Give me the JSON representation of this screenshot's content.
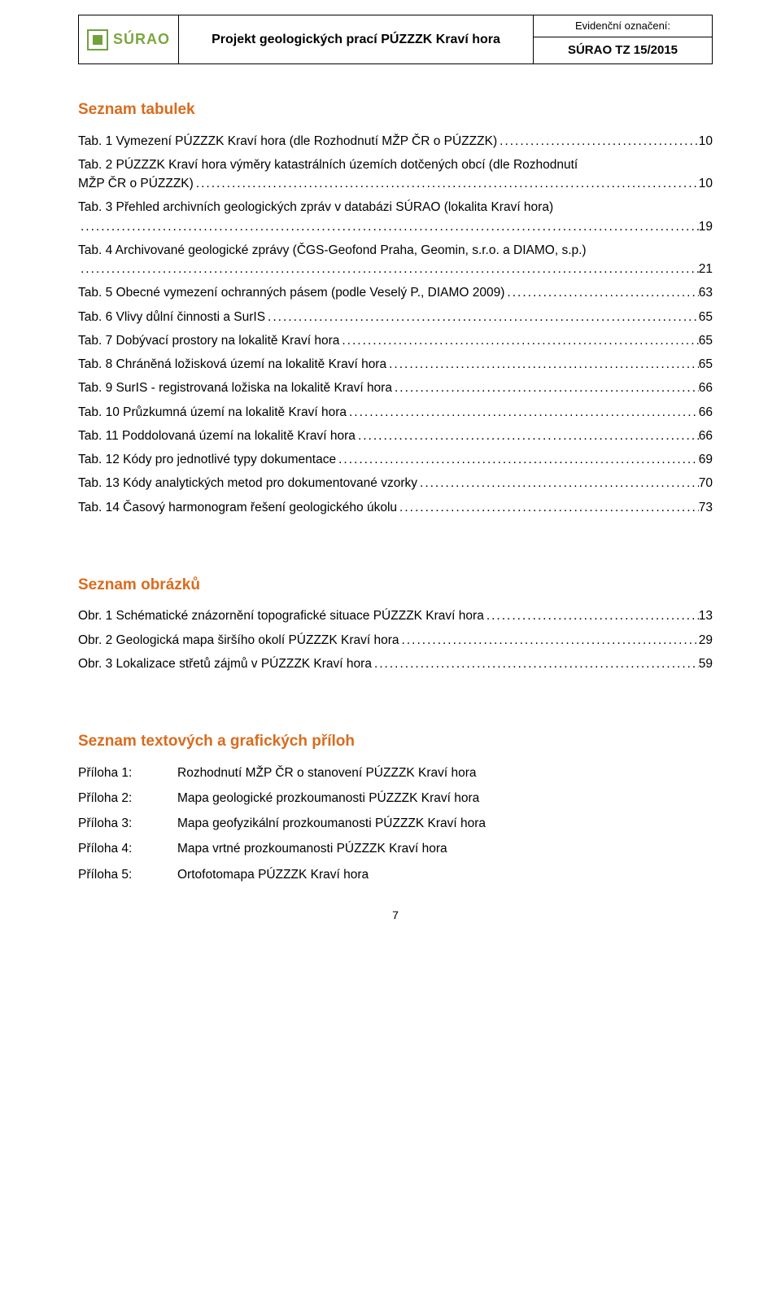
{
  "colors": {
    "heading": "#d86c1e",
    "logo_green": "#6fa23d",
    "text": "#000000",
    "background": "#ffffff",
    "border": "#000000"
  },
  "typography": {
    "body_font": "Arial",
    "body_size_pt": 11,
    "heading_size_pt": 14,
    "heading_weight": "bold"
  },
  "header": {
    "logo_text": "SÚRAO",
    "title": "Projekt geologických prací PÚZZZK Kraví hora",
    "right_top": "Evidenční označení:",
    "right_bottom": "SÚRAO TZ 15/2015"
  },
  "tables_section": {
    "heading": "Seznam tabulek",
    "items": [
      {
        "label": "Tab. 1 Vymezení PÚZZZK Kraví hora (dle Rozhodnutí MŽP ČR o PÚZZZK)",
        "page": "10"
      },
      {
        "label": "Tab. 2 PÚZZZK Kraví hora výměry katastrálních územích dotčených obcí (dle Rozhodnutí MŽP ČR o PÚZZZK)",
        "page": "10"
      },
      {
        "label": "Tab. 3 Přehled archivních geologických zpráv v databázi SÚRAO (lokalita Kraví hora)",
        "page": "19"
      },
      {
        "label": "Tab. 4 Archivované geologické zprávy (ČGS-Geofond Praha, Geomin, s.r.o. a DIAMO, s.p.)",
        "page": "21"
      },
      {
        "label": "Tab. 5 Obecné vymezení ochranných pásem (podle Veselý P., DIAMO 2009)",
        "page": "63"
      },
      {
        "label": "Tab. 6 Vlivy důlní činnosti a SurIS",
        "page": "65"
      },
      {
        "label": "Tab. 7  Dobývací prostory na lokalitě Kraví hora",
        "page": "65"
      },
      {
        "label": "Tab. 8 Chráněná ložisková území na lokalitě Kraví hora",
        "page": "65"
      },
      {
        "label": "Tab. 9 SurIS - registrovaná ložiska na lokalitě Kraví hora",
        "page": "66"
      },
      {
        "label": "Tab. 10 Průzkumná území na lokalitě Kraví hora",
        "page": "66"
      },
      {
        "label": "Tab. 11 Poddolovaná území na lokalitě Kraví hora",
        "page": "66"
      },
      {
        "label": "Tab. 12 Kódy pro jednotlivé typy dokumentace",
        "page": "69"
      },
      {
        "label": "Tab. 13 Kódy analytických metod pro dokumentované vzorky",
        "page": "70"
      },
      {
        "label": "Tab. 14 Časový harmonogram řešení geologického úkolu",
        "page": "73"
      }
    ]
  },
  "figures_section": {
    "heading": "Seznam obrázků",
    "items": [
      {
        "label": "Obr. 1 Schématické znázornění topografické situace PÚZZZK Kraví hora",
        "page": "13"
      },
      {
        "label": "Obr. 2 Geologická mapa širšího okolí PÚZZZK Kraví hora",
        "page": "29"
      },
      {
        "label": "Obr. 3 Lokalizace střetů zájmů v PÚZZZK Kraví hora",
        "page": "59"
      }
    ]
  },
  "appendix_section": {
    "heading": "Seznam textových a grafických příloh",
    "items": [
      {
        "label": "Příloha 1:",
        "text": "Rozhodnutí MŽP ČR o stanovení PÚZZZK Kraví hora"
      },
      {
        "label": "Příloha 2:",
        "text": "Mapa geologické prozkoumanosti PÚZZZK Kraví hora"
      },
      {
        "label": "Příloha 3:",
        "text": "Mapa geofyzikální prozkoumanosti PÚZZZK Kraví hora"
      },
      {
        "label": "Příloha 4:",
        "text": "Mapa vrtné prozkoumanosti PÚZZZK Kraví hora"
      },
      {
        "label": "Příloha 5:",
        "text": "Ortofotomapa PÚZZZK Kraví hora"
      }
    ]
  },
  "page_number": "7"
}
